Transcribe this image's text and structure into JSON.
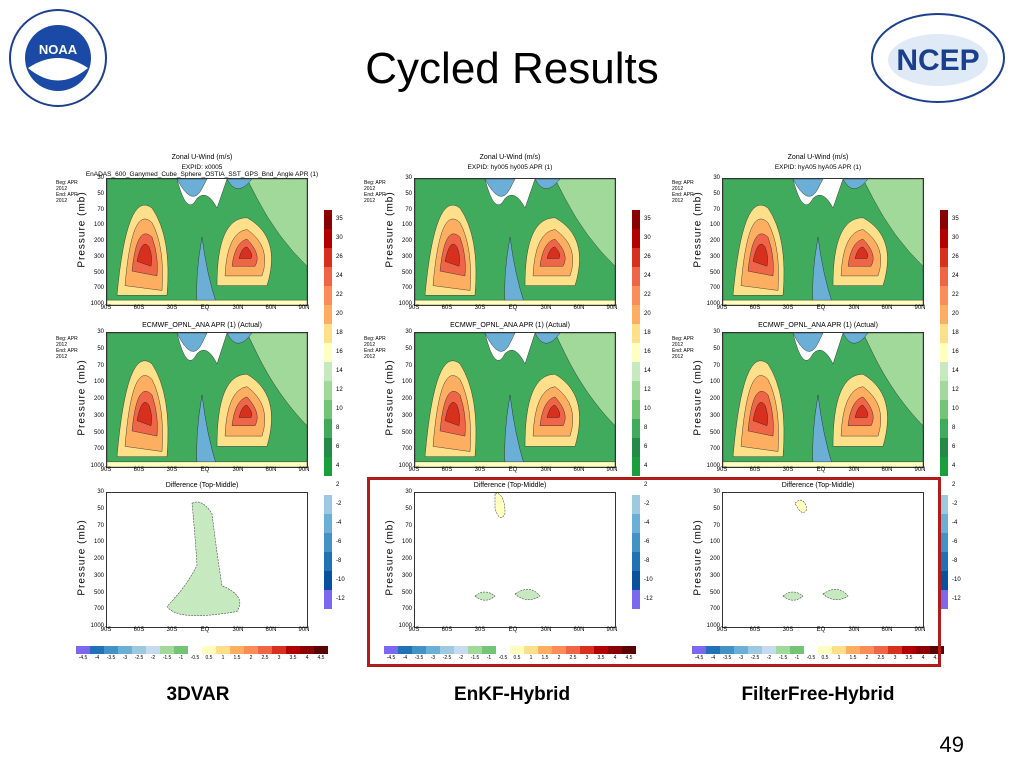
{
  "slide": {
    "title": "Cycled Results",
    "page_number": "49"
  },
  "logos": {
    "noaa_text": "NOAA",
    "ncep_text": "NCEP"
  },
  "common": {
    "ylabel": "Pressure (mb)",
    "yticks": [
      "30",
      "50",
      "70",
      "100",
      "200",
      "300",
      "500",
      "700",
      "1000"
    ],
    "xticks": [
      "90S",
      "60S",
      "30S",
      "EQ",
      "30N",
      "60N",
      "90N"
    ],
    "colorbar_vertical": [
      "35",
      "30",
      "26",
      "24",
      "22",
      "20",
      "18",
      "16",
      "14",
      "12",
      "10",
      "8",
      "6",
      "4",
      "2",
      "-2",
      "-4",
      "-6",
      "-8",
      "-10",
      "-12"
    ],
    "colorbar_horizontal": [
      "-4.5",
      "-4",
      "-3.5",
      "-3",
      "-2.5",
      "-2",
      "-1.5",
      "-1",
      "-0.5",
      "0.5",
      "1",
      "1.5",
      "2",
      "2.5",
      "3",
      "3.5",
      "4",
      "4.5"
    ]
  },
  "columns": [
    {
      "label": "3DVAR",
      "top_title": "Zonal U-Wind (m/s)",
      "top_expid": "EXPID: x0005   EnADAS_600_Ganymed_Cube_Sphere_OSTIA_SST_GPS_Bnd_Angle APR (1)",
      "beg": "Beg: APR 2012",
      "end": "End: APR 2012",
      "mid_title": "ECMWF_OPNL_ANA APR (1) (Actual)",
      "diff_title": "Difference (Top-Middle)"
    },
    {
      "label": "EnKF-Hybrid",
      "top_title": "Zonal U-Wind (m/s)",
      "top_expid": "EXPID: hy005   hy005 APR (1)",
      "beg": "Beg: APR 2012",
      "end": "End: APR 2012",
      "mid_title": "ECMWF_OPNL_ANA APR (1) (Actual)",
      "diff_title": "Difference (Top-Middle)"
    },
    {
      "label": "FilterFree-Hybrid",
      "top_title": "Zonal U-Wind (m/s)",
      "top_expid": "EXPID: hyA05   hyA05 APR (1)",
      "beg": "Beg: APR 2012",
      "end": "End: APR 2012",
      "mid_title": "ECMWF_OPNL_ANA APR (1) (Actual)",
      "diff_title": "Difference (Top-Middle)"
    }
  ]
}
